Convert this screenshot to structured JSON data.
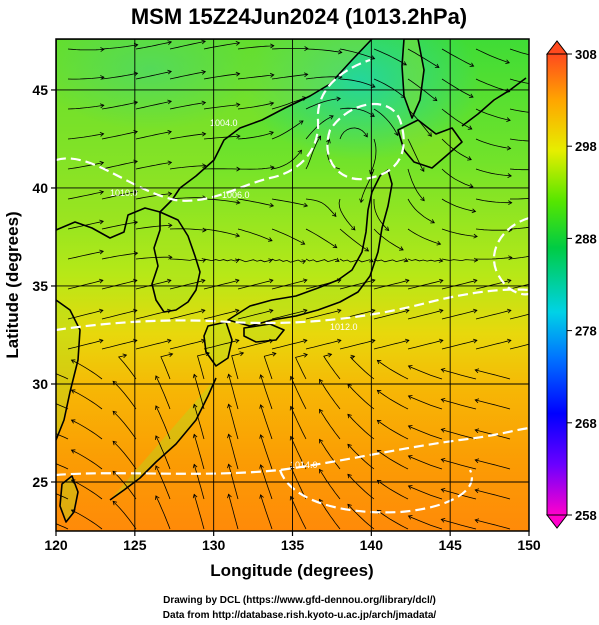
{
  "chart_data": {
    "type": "heatmap",
    "title": "MSM 15Z24Jun2024 (1013.2hPa)",
    "xlabel": "Longitude (degrees)",
    "ylabel": "Latitude  (degrees)",
    "xlim": [
      120,
      150
    ],
    "ylim": [
      22.5,
      47.6
    ],
    "xticks": [
      120,
      125,
      130,
      135,
      140,
      145,
      150
    ],
    "yticks": [
      25,
      30,
      35,
      40,
      45
    ],
    "xtick_labels": [
      "120",
      "125",
      "130",
      "135",
      "140",
      "145",
      "150"
    ],
    "ytick_labels": [
      "25",
      "30",
      "35",
      "40",
      "45"
    ],
    "grid": true,
    "colorbar": {
      "min": 258,
      "max": 308,
      "ticks": [
        258,
        268,
        278,
        288,
        298,
        308
      ],
      "tick_labels": [
        "258",
        "268",
        "278",
        "288",
        "298",
        "308"
      ],
      "colors": [
        "#ff00cc",
        "#6a00ff",
        "#0000ff",
        "#0073ff",
        "#00d2e6",
        "#00cc44",
        "#55e600",
        "#e6ee00",
        "#ffa500",
        "#ff4a1e"
      ],
      "extends": "both"
    },
    "overlays": [
      "streamlines (surface wind)",
      "coastlines",
      "white isobar contours"
    ],
    "contour_labels": [
      "1004.0",
      "1006.0",
      "1010.0",
      "1012.0",
      "1014.0"
    ]
  },
  "credits": {
    "line1": "Drawing by DCL (https://www.gfd-dennou.org/library/dcl/)",
    "line2": "Data from http://database.rish.kyoto-u.ac.jp/arch/jmadata/"
  }
}
